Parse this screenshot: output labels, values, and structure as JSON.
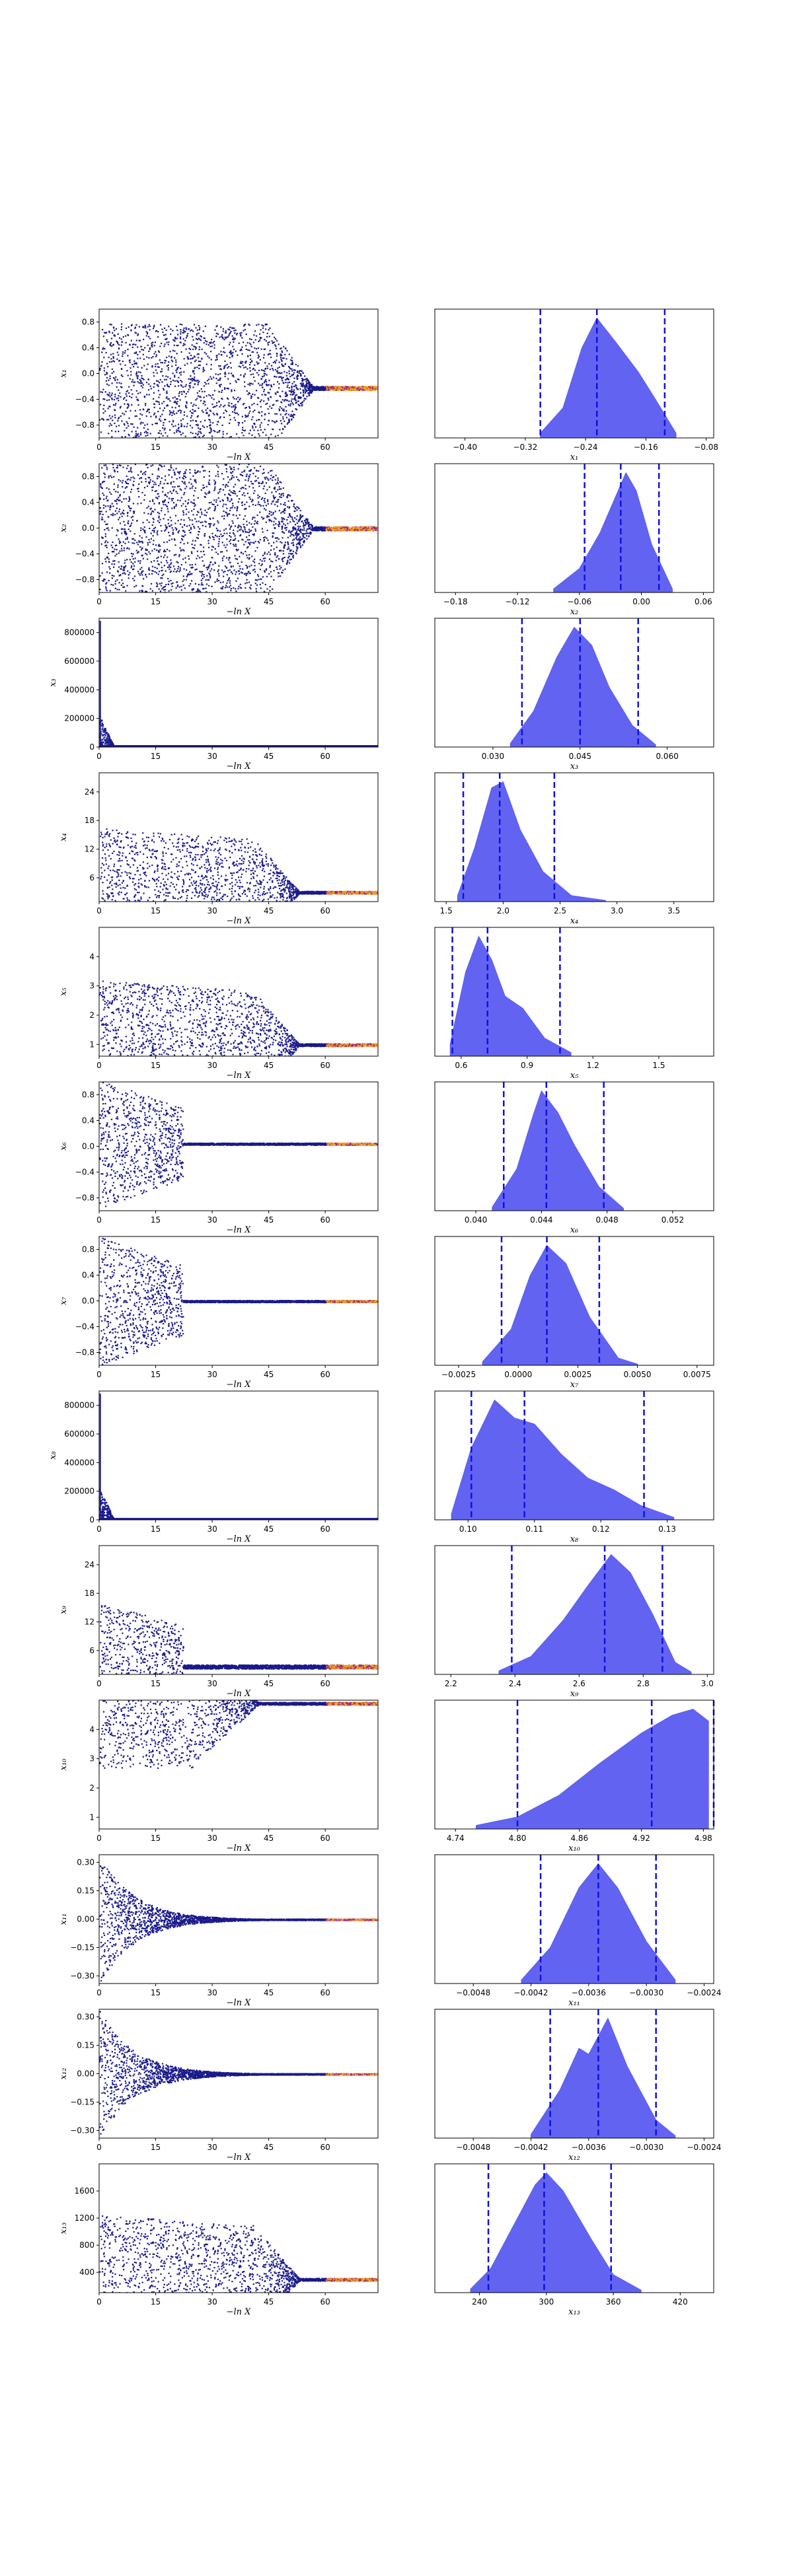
{
  "figure": {
    "trace_x_label": "−ln X"
  },
  "chart_data": [
    {
      "param": "x1",
      "ylabel": "x₁",
      "trace_yticks": [
        "0.8",
        "0.4",
        "0.0",
        "−0.4",
        "−0.8"
      ],
      "trace_yvals": [
        0.8,
        0.4,
        0.0,
        -0.4,
        -0.8
      ],
      "trace_ylim": [
        -1.0,
        1.0
      ],
      "final_value": -0.22,
      "trace_shape": "bimodal_late",
      "post_xlabel": "x₁",
      "post_xticks": [
        "−0.40",
        "−0.32",
        "−0.24",
        "−0.16",
        "−0.08"
      ],
      "post_xvals": [
        -0.4,
        -0.32,
        -0.24,
        -0.16,
        -0.08
      ],
      "post_xlim": [
        -0.44,
        -0.07
      ],
      "quantiles": [
        -0.3,
        -0.225,
        -0.135
      ],
      "density": [
        [
          -0.3,
          0.04
        ],
        [
          -0.27,
          0.25
        ],
        [
          -0.245,
          0.75
        ],
        [
          -0.225,
          1.0
        ],
        [
          -0.2,
          0.8
        ],
        [
          -0.17,
          0.55
        ],
        [
          -0.15,
          0.35
        ],
        [
          -0.12,
          0.04
        ]
      ]
    },
    {
      "param": "x2",
      "ylabel": "x₂",
      "trace_yticks": [
        "0.8",
        "0.4",
        "0.0",
        "−0.4",
        "−0.8"
      ],
      "trace_yvals": [
        0.8,
        0.4,
        0.0,
        -0.4,
        -0.8
      ],
      "trace_ylim": [
        -1.0,
        1.0
      ],
      "final_value": 0.0,
      "trace_shape": "bimodal_late",
      "post_xlabel": "x₂",
      "post_xticks": [
        "−0.18",
        "−0.12",
        "−0.06",
        "0.00",
        "0.06"
      ],
      "post_xvals": [
        -0.18,
        -0.12,
        -0.06,
        0.0,
        0.06
      ],
      "post_xlim": [
        -0.2,
        0.07
      ],
      "quantiles": [
        -0.055,
        -0.02,
        0.017
      ],
      "density": [
        [
          -0.085,
          0.03
        ],
        [
          -0.06,
          0.2
        ],
        [
          -0.04,
          0.5
        ],
        [
          -0.025,
          0.8
        ],
        [
          -0.015,
          1.0
        ],
        [
          -0.005,
          0.85
        ],
        [
          0.01,
          0.4
        ],
        [
          0.03,
          0.03
        ]
      ]
    },
    {
      "param": "x3",
      "ylabel": "x₃",
      "trace_yticks": [
        "800000",
        "600000",
        "400000",
        "200000",
        "0"
      ],
      "trace_yvals": [
        800000,
        600000,
        400000,
        200000,
        0
      ],
      "trace_ylim": [
        0,
        900000
      ],
      "final_value": 0,
      "trace_shape": "spike",
      "post_xlabel": "x₃",
      "post_xticks": [
        "0.030",
        "0.045",
        "0.060"
      ],
      "post_xvals": [
        0.03,
        0.045,
        0.06
      ],
      "post_xlim": [
        0.02,
        0.068
      ],
      "quantiles": [
        0.035,
        0.045,
        0.055
      ],
      "density": [
        [
          0.033,
          0.03
        ],
        [
          0.037,
          0.3
        ],
        [
          0.041,
          0.75
        ],
        [
          0.044,
          1.0
        ],
        [
          0.047,
          0.85
        ],
        [
          0.05,
          0.5
        ],
        [
          0.054,
          0.18
        ],
        [
          0.058,
          0.02
        ]
      ]
    },
    {
      "param": "x4",
      "ylabel": "x₄",
      "trace_yticks": [
        "24",
        "18",
        "12",
        "6"
      ],
      "trace_yvals": [
        24,
        18,
        12,
        6
      ],
      "trace_ylim": [
        1,
        28
      ],
      "final_value": 3.0,
      "trace_shape": "decay",
      "post_xlabel": "x₄",
      "post_xticks": [
        "1.5",
        "2.0",
        "2.5",
        "3.0",
        "3.5"
      ],
      "post_xvals": [
        1.5,
        2.0,
        2.5,
        3.0,
        3.5
      ],
      "post_xlim": [
        1.4,
        3.85
      ],
      "quantiles": [
        1.65,
        1.97,
        2.45
      ],
      "density": [
        [
          1.6,
          0.05
        ],
        [
          1.75,
          0.45
        ],
        [
          1.9,
          0.95
        ],
        [
          2.0,
          1.0
        ],
        [
          2.15,
          0.6
        ],
        [
          2.35,
          0.25
        ],
        [
          2.6,
          0.05
        ],
        [
          2.9,
          0.01
        ]
      ]
    },
    {
      "param": "x5",
      "ylabel": "x₅",
      "trace_yticks": [
        "4",
        "3",
        "2",
        "1"
      ],
      "trace_yvals": [
        4,
        3,
        2,
        1
      ],
      "trace_ylim": [
        0.6,
        5.0
      ],
      "final_value": 1.0,
      "trace_shape": "decay",
      "post_xlabel": "x₅",
      "post_xticks": [
        "0.6",
        "0.9",
        "1.2",
        "1.5"
      ],
      "post_xvals": [
        0.6,
        0.9,
        1.2,
        1.5
      ],
      "post_xlim": [
        0.48,
        1.75
      ],
      "quantiles": [
        0.56,
        0.72,
        1.05
      ],
      "density": [
        [
          0.55,
          0.1
        ],
        [
          0.62,
          0.7
        ],
        [
          0.68,
          1.0
        ],
        [
          0.74,
          0.8
        ],
        [
          0.8,
          0.5
        ],
        [
          0.88,
          0.4
        ],
        [
          0.98,
          0.15
        ],
        [
          1.1,
          0.03
        ]
      ]
    },
    {
      "param": "x6",
      "ylabel": "x₆",
      "trace_yticks": [
        "0.8",
        "0.4",
        "0.0",
        "−0.4",
        "−0.8"
      ],
      "trace_yvals": [
        0.8,
        0.4,
        0.0,
        -0.4,
        -0.8
      ],
      "trace_ylim": [
        -1.0,
        1.0
      ],
      "final_value": 0.044,
      "trace_shape": "early_noise",
      "post_xlabel": "x₆",
      "post_xticks": [
        "0.040",
        "0.044",
        "0.048",
        "0.052"
      ],
      "post_xvals": [
        0.04,
        0.044,
        0.048,
        0.052
      ],
      "post_xlim": [
        0.0375,
        0.0545
      ],
      "quantiles": [
        0.0417,
        0.0443,
        0.0478
      ],
      "density": [
        [
          0.041,
          0.03
        ],
        [
          0.0425,
          0.35
        ],
        [
          0.0435,
          0.8
        ],
        [
          0.044,
          1.0
        ],
        [
          0.045,
          0.82
        ],
        [
          0.046,
          0.55
        ],
        [
          0.0475,
          0.2
        ],
        [
          0.049,
          0.02
        ]
      ]
    },
    {
      "param": "x7",
      "ylabel": "x₇",
      "trace_yticks": [
        "0.8",
        "0.4",
        "0.0",
        "−0.4",
        "−0.8"
      ],
      "trace_yvals": [
        0.8,
        0.4,
        0.0,
        -0.4,
        -0.8
      ],
      "trace_ylim": [
        -1.0,
        1.0
      ],
      "final_value": 0.0,
      "trace_shape": "early_noise",
      "post_xlabel": "x₇",
      "post_xticks": [
        "−0.0025",
        "0.0000",
        "0.0025",
        "0.0050",
        "0.0075"
      ],
      "post_xvals": [
        -0.0025,
        0.0,
        0.0025,
        0.005,
        0.0075
      ],
      "post_xlim": [
        -0.0035,
        0.0082
      ],
      "quantiles": [
        -0.0007,
        0.0012,
        0.0034
      ],
      "density": [
        [
          -0.0015,
          0.03
        ],
        [
          -0.0003,
          0.3
        ],
        [
          0.0005,
          0.75
        ],
        [
          0.0012,
          1.0
        ],
        [
          0.002,
          0.85
        ],
        [
          0.003,
          0.4
        ],
        [
          0.0042,
          0.06
        ],
        [
          0.005,
          0.01
        ]
      ]
    },
    {
      "param": "x8",
      "ylabel": "x₈",
      "trace_yticks": [
        "800000",
        "600000",
        "400000",
        "200000",
        "0"
      ],
      "trace_yvals": [
        800000,
        600000,
        400000,
        200000,
        0
      ],
      "trace_ylim": [
        0,
        900000
      ],
      "final_value": 0,
      "trace_shape": "spike",
      "post_xlabel": "x₈",
      "post_xticks": [
        "0.10",
        "0.11",
        "0.12",
        "0.13"
      ],
      "post_xvals": [
        0.1,
        0.11,
        0.12,
        0.13
      ],
      "post_xlim": [
        0.095,
        0.137
      ],
      "quantiles": [
        0.1005,
        0.1085,
        0.1265
      ],
      "density": [
        [
          0.0975,
          0.05
        ],
        [
          0.1005,
          0.6
        ],
        [
          0.104,
          1.0
        ],
        [
          0.107,
          0.85
        ],
        [
          0.11,
          0.8
        ],
        [
          0.114,
          0.55
        ],
        [
          0.118,
          0.35
        ],
        [
          0.122,
          0.25
        ],
        [
          0.126,
          0.12
        ],
        [
          0.131,
          0.02
        ]
      ]
    },
    {
      "param": "x9",
      "ylabel": "x₉",
      "trace_yticks": [
        "24",
        "18",
        "12",
        "6"
      ],
      "trace_yvals": [
        24,
        18,
        12,
        6
      ],
      "trace_ylim": [
        1,
        28
      ],
      "final_value": 2.7,
      "trace_shape": "early_noise_high",
      "post_xlabel": "x₉",
      "post_xticks": [
        "2.2",
        "2.4",
        "2.6",
        "2.8",
        "3.0"
      ],
      "post_xvals": [
        2.2,
        2.4,
        2.6,
        2.8,
        3.0
      ],
      "post_xlim": [
        2.15,
        3.02
      ],
      "quantiles": [
        2.39,
        2.68,
        2.86
      ],
      "density": [
        [
          2.35,
          0.03
        ],
        [
          2.45,
          0.15
        ],
        [
          2.55,
          0.45
        ],
        [
          2.63,
          0.75
        ],
        [
          2.7,
          1.0
        ],
        [
          2.76,
          0.85
        ],
        [
          2.83,
          0.5
        ],
        [
          2.9,
          0.1
        ],
        [
          2.95,
          0.02
        ]
      ]
    },
    {
      "param": "x10",
      "ylabel": "x₁₀",
      "trace_yticks": [
        "4",
        "3",
        "2",
        "1"
      ],
      "trace_yvals": [
        4,
        3,
        2,
        1
      ],
      "trace_ylim": [
        0.6,
        5.0
      ],
      "final_value": 4.9,
      "trace_shape": "rise",
      "post_xlabel": "x₁₀",
      "post_xticks": [
        "4.74",
        "4.80",
        "4.86",
        "4.92",
        "4.98"
      ],
      "post_xvals": [
        4.74,
        4.8,
        4.86,
        4.92,
        4.98
      ],
      "post_xlim": [
        4.72,
        4.99
      ],
      "quantiles": [
        4.8,
        4.93,
        4.99
      ],
      "density": [
        [
          4.76,
          0.03
        ],
        [
          4.8,
          0.1
        ],
        [
          4.84,
          0.28
        ],
        [
          4.88,
          0.55
        ],
        [
          4.92,
          0.8
        ],
        [
          4.95,
          0.95
        ],
        [
          4.97,
          1.0
        ],
        [
          4.985,
          0.9
        ]
      ]
    },
    {
      "param": "x11",
      "ylabel": "x₁₁",
      "trace_yticks": [
        "0.30",
        "0.15",
        "0.00",
        "−0.15",
        "−0.30"
      ],
      "trace_yvals": [
        0.3,
        0.15,
        0.0,
        -0.15,
        -0.3
      ],
      "trace_ylim": [
        -0.34,
        0.34
      ],
      "final_value": 0.0,
      "trace_shape": "converge",
      "post_xlabel": "x₁₁",
      "post_xticks": [
        "−0.0048",
        "−0.0042",
        "−0.0036",
        "−0.0030",
        "−0.0024"
      ],
      "post_xvals": [
        -0.0048,
        -0.0042,
        -0.0036,
        -0.003,
        -0.0024
      ],
      "post_xlim": [
        -0.0052,
        -0.0023
      ],
      "quantiles": [
        -0.0041,
        -0.0035,
        -0.0029
      ],
      "density": [
        [
          -0.0043,
          0.03
        ],
        [
          -0.004,
          0.3
        ],
        [
          -0.0037,
          0.8
        ],
        [
          -0.0035,
          1.0
        ],
        [
          -0.0033,
          0.8
        ],
        [
          -0.003,
          0.35
        ],
        [
          -0.0027,
          0.03
        ]
      ]
    },
    {
      "param": "x12",
      "ylabel": "x₁₂",
      "trace_yticks": [
        "0.30",
        "0.15",
        "0.00",
        "−0.15",
        "−0.30"
      ],
      "trace_yvals": [
        0.3,
        0.15,
        0.0,
        -0.15,
        -0.3
      ],
      "trace_ylim": [
        -0.34,
        0.34
      ],
      "final_value": 0.0,
      "trace_shape": "converge",
      "post_xlabel": "x₁₂",
      "post_xticks": [
        "−0.0048",
        "−0.0042",
        "−0.0036",
        "−0.0030",
        "−0.0024"
      ],
      "post_xvals": [
        -0.0048,
        -0.0042,
        -0.0036,
        -0.003,
        -0.0024
      ],
      "post_xlim": [
        -0.0052,
        -0.0023
      ],
      "quantiles": [
        -0.004,
        -0.0035,
        -0.0029
      ],
      "density": [
        [
          -0.0042,
          0.03
        ],
        [
          -0.0039,
          0.4
        ],
        [
          -0.0037,
          0.75
        ],
        [
          -0.0036,
          0.7
        ],
        [
          -0.0034,
          1.0
        ],
        [
          -0.0032,
          0.6
        ],
        [
          -0.0029,
          0.15
        ],
        [
          -0.0027,
          0.02
        ]
      ]
    },
    {
      "param": "x13",
      "ylabel": "x₁₃",
      "trace_yticks": [
        "1600",
        "1200",
        "800",
        "400"
      ],
      "trace_yvals": [
        1600,
        1200,
        800,
        400
      ],
      "trace_ylim": [
        100,
        2000
      ],
      "final_value": 300,
      "trace_shape": "decay",
      "post_xlabel": "x₁₃",
      "post_xticks": [
        "240",
        "300",
        "360",
        "420"
      ],
      "post_xvals": [
        240,
        300,
        360,
        420
      ],
      "post_xlim": [
        200,
        450
      ],
      "quantiles": [
        248,
        298,
        358
      ],
      "density": [
        [
          232,
          0.03
        ],
        [
          250,
          0.2
        ],
        [
          270,
          0.55
        ],
        [
          290,
          0.9
        ],
        [
          300,
          1.0
        ],
        [
          315,
          0.85
        ],
        [
          340,
          0.45
        ],
        [
          360,
          0.15
        ],
        [
          385,
          0.02
        ]
      ]
    }
  ],
  "trace_xticks": [
    "0",
    "15",
    "30",
    "45",
    "60"
  ],
  "trace_xvals": [
    0,
    15,
    30,
    45,
    60
  ],
  "trace_xlim": [
    0,
    74
  ],
  "colors": {
    "trace_main": "#1a1a8c",
    "trace_hot_a": "#f0a020",
    "trace_hot_b": "#a02878",
    "posterior_fill": "#5a5cf0",
    "quantile_line": "#1010e0"
  }
}
